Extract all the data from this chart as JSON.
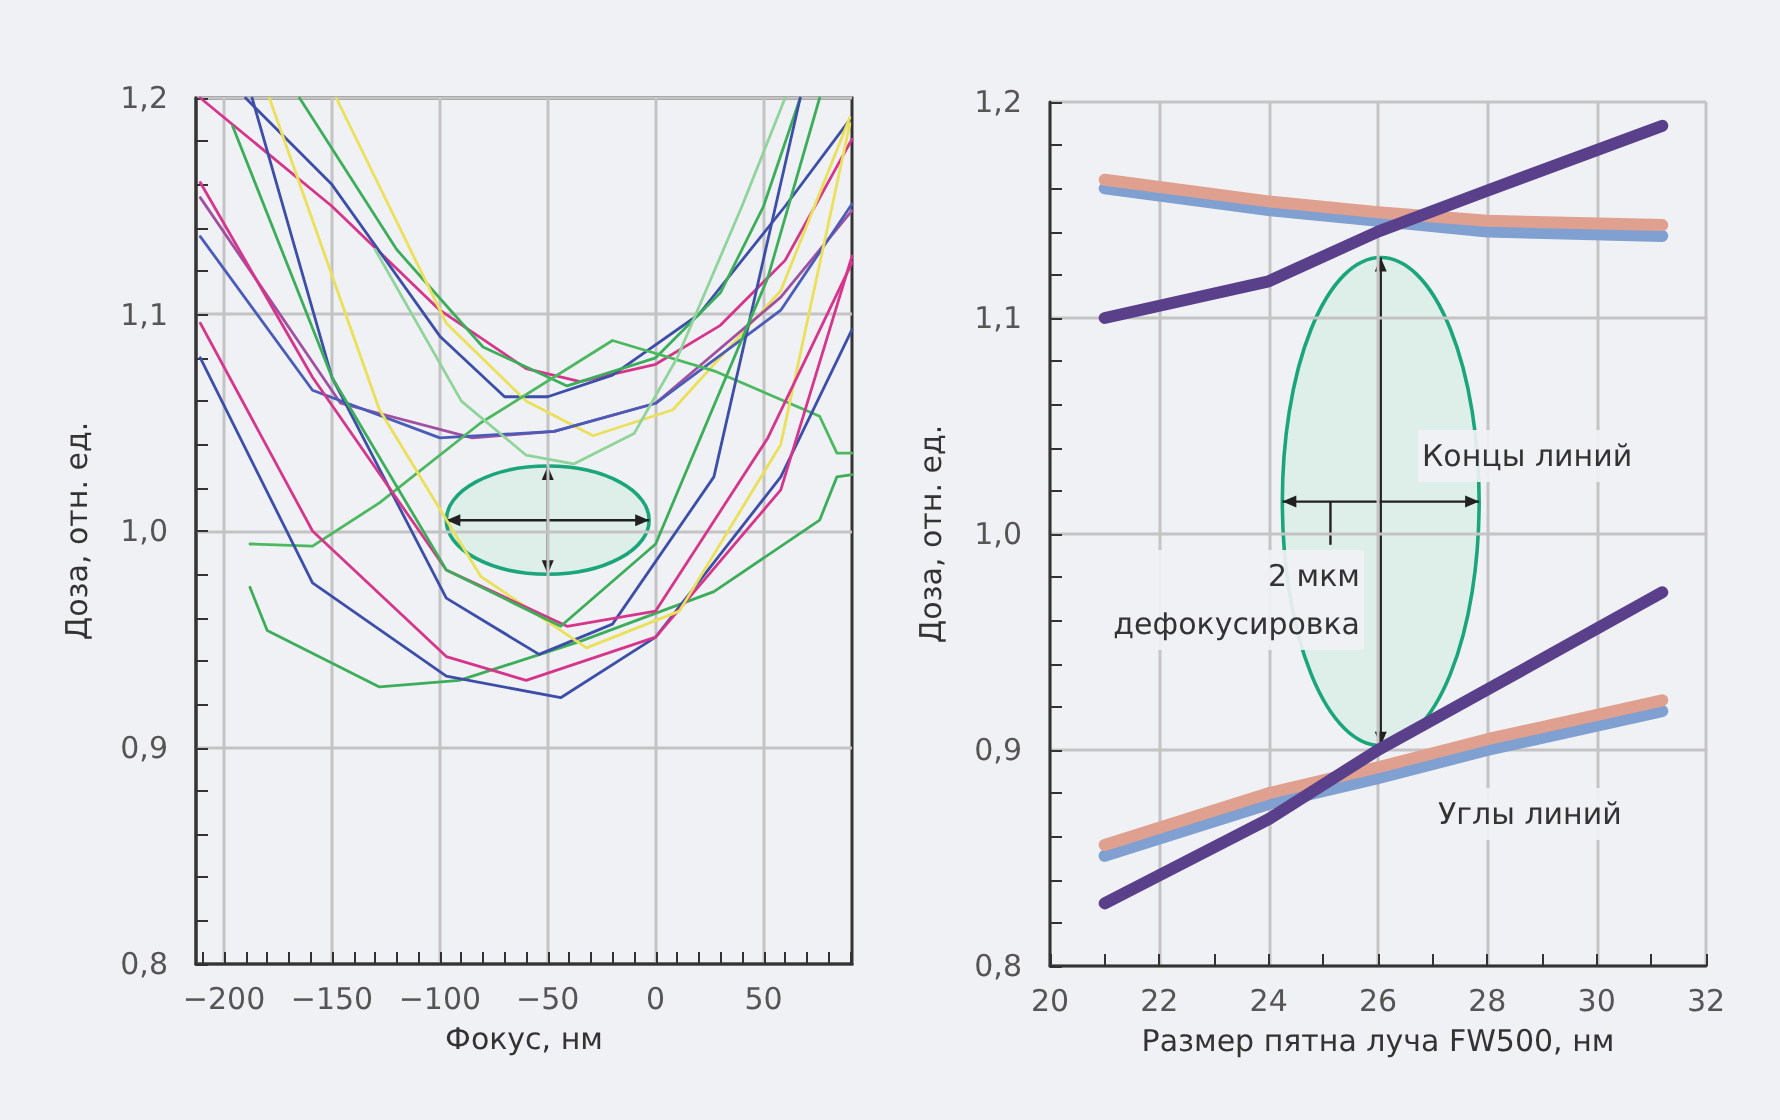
{
  "chart_data": [
    {
      "type": "line",
      "xlabel": "Фокус, нм",
      "ylabel": "Доза, отн. ед.",
      "xlim": [
        -213,
        91
      ],
      "ylim": [
        0.8,
        1.2
      ],
      "grid": true,
      "marker": "none",
      "line_style": "solid",
      "xticks": [
        {
          "value": -210,
          "label": null
        },
        {
          "value": -200,
          "label": "−200"
        },
        {
          "value": -190,
          "label": null
        },
        {
          "value": -180,
          "label": null
        },
        {
          "value": -170,
          "label": null
        },
        {
          "value": -160,
          "label": null
        },
        {
          "value": -150,
          "label": "−150"
        },
        {
          "value": -140,
          "label": null
        },
        {
          "value": -130,
          "label": null
        },
        {
          "value": -120,
          "label": null
        },
        {
          "value": -110,
          "label": null
        },
        {
          "value": -100,
          "label": "−100"
        },
        {
          "value": -90,
          "label": null
        },
        {
          "value": -80,
          "label": null
        },
        {
          "value": -70,
          "label": null
        },
        {
          "value": -60,
          "label": null
        },
        {
          "value": -50,
          "label": "−50"
        },
        {
          "value": -40,
          "label": null
        },
        {
          "value": -30,
          "label": null
        },
        {
          "value": -20,
          "label": null
        },
        {
          "value": -10,
          "label": null
        },
        0,
        {
          "value": 10,
          "label": null
        },
        {
          "value": 20,
          "label": null
        },
        {
          "value": 30,
          "label": null
        },
        {
          "value": 40,
          "label": null
        },
        50,
        {
          "value": 60,
          "label": null
        },
        {
          "value": 70,
          "label": null
        },
        {
          "value": 80,
          "label": null
        },
        {
          "value": 90,
          "label": null
        }
      ],
      "yticks": [
        {
          "value": 0.8,
          "label": "0,8"
        },
        {
          "value": 0.82,
          "label": null
        },
        {
          "value": 0.84,
          "label": null
        },
        {
          "value": 0.86,
          "label": null
        },
        {
          "value": 0.88,
          "label": null
        },
        {
          "value": 0.9,
          "label": "0,9"
        },
        {
          "value": 0.92,
          "label": null
        },
        {
          "value": 0.94,
          "label": null
        },
        {
          "value": 0.96,
          "label": null
        },
        {
          "value": 0.98,
          "label": null
        },
        {
          "value": 1.0,
          "label": "1,0"
        },
        {
          "value": 1.02,
          "label": null
        },
        {
          "value": 1.04,
          "label": null
        },
        {
          "value": 1.06,
          "label": null
        },
        {
          "value": 1.08,
          "label": null
        },
        {
          "value": 1.1,
          "label": "1,1"
        },
        {
          "value": 1.12,
          "label": null
        },
        {
          "value": 1.14,
          "label": null
        },
        {
          "value": 1.16,
          "label": null
        },
        {
          "value": 1.18,
          "label": null
        },
        {
          "value": 1.2,
          "label": "1,2"
        }
      ],
      "series": [
        {
          "color": "#d6358c",
          "x": [
            -211,
            -150,
            -100,
            -60,
            -35,
            0,
            30,
            60,
            91
          ],
          "values": [
            1.2,
            1.15,
            1.102,
            1.075,
            1.069,
            1.077,
            1.095,
            1.125,
            1.181
          ]
        },
        {
          "color": "#3c4ea8",
          "x": [
            -190,
            -150,
            -100,
            -70,
            -50,
            -20,
            20,
            60,
            90
          ],
          "values": [
            1.2,
            1.16,
            1.09,
            1.062,
            1.062,
            1.072,
            1.1,
            1.15,
            1.19
          ]
        },
        {
          "color": "#3cae5a",
          "x": [
            -165,
            -120,
            -80,
            -41,
            0,
            30,
            50,
            67
          ],
          "values": [
            1.2,
            1.13,
            1.085,
            1.067,
            1.08,
            1.11,
            1.15,
            1.2
          ]
        },
        {
          "color": "#ebe05a",
          "x": [
            -148,
            -97,
            -60,
            -29,
            8,
            58,
            90
          ],
          "values": [
            1.2,
            1.096,
            1.06,
            1.044,
            1.056,
            1.111,
            1.191
          ]
        },
        {
          "color": "#a050a0",
          "x": [
            -211,
            -146,
            -85,
            -47,
            0,
            58,
            91
          ],
          "values": [
            1.154,
            1.059,
            1.043,
            1.046,
            1.059,
            1.108,
            1.148
          ]
        },
        {
          "color": "#4a5cb8",
          "x": [
            -211,
            -159,
            -100,
            -47,
            0,
            58,
            91
          ],
          "values": [
            1.136,
            1.065,
            1.043,
            1.046,
            1.059,
            1.102,
            1.151
          ]
        },
        {
          "color": "#4cb860",
          "x": [
            -188,
            -159,
            -128,
            -81,
            -20,
            27,
            76,
            84,
            91
          ],
          "values": [
            0.994,
            0.993,
            1.013,
            1.05,
            1.088,
            1.074,
            1.053,
            1.036,
            1.036
          ]
        },
        {
          "color": "#8fd49a",
          "x": [
            -130,
            -90,
            -60,
            -38,
            -10,
            10,
            40,
            60
          ],
          "values": [
            1.13,
            1.06,
            1.035,
            1.031,
            1.045,
            1.08,
            1.15,
            1.2
          ]
        },
        {
          "color": "#3cae5a",
          "x": [
            -188,
            -180,
            -128,
            -91,
            -35,
            27,
            76,
            84,
            91
          ],
          "values": [
            0.974,
            0.954,
            0.928,
            0.931,
            0.949,
            0.972,
            1.005,
            1.025,
            1.026
          ]
        },
        {
          "color": "#3c4ea8",
          "x": [
            -211,
            -159,
            -97,
            -44,
            0,
            58,
            91
          ],
          "values": [
            1.08,
            0.976,
            0.933,
            0.923,
            0.951,
            1.025,
            1.093
          ]
        },
        {
          "color": "#d6358c",
          "x": [
            -211,
            -159,
            -97,
            -60,
            0,
            58,
            91
          ],
          "values": [
            1.096,
            1.0,
            0.942,
            0.931,
            0.951,
            1.019,
            1.127
          ]
        },
        {
          "color": "#3c4ea8",
          "x": [
            -187,
            -150,
            -97,
            -54,
            -20,
            27,
            67
          ],
          "values": [
            1.2,
            1.071,
            0.969,
            0.943,
            0.957,
            1.025,
            1.2
          ]
        },
        {
          "color": "#ebe05a",
          "x": [
            -179,
            -128,
            -81,
            -32,
            11,
            58,
            90
          ],
          "values": [
            1.2,
            1.056,
            0.979,
            0.946,
            0.963,
            1.04,
            1.188
          ]
        },
        {
          "color": "#d6358c",
          "x": [
            -211,
            -159,
            -97,
            -41,
            0,
            52,
            91
          ],
          "values": [
            1.161,
            1.071,
            0.982,
            0.956,
            0.963,
            1.043,
            1.124
          ]
        },
        {
          "color": "#3cae5a",
          "x": [
            -196,
            -150,
            -97,
            -44,
            0,
            52,
            76
          ],
          "values": [
            1.187,
            1.071,
            0.982,
            0.956,
            0.994,
            1.117,
            1.2
          ]
        }
      ]
    },
    {
      "type": "line",
      "xlabel": "Размер пятна луча FW500, нм",
      "ylabel": "Доза, отн. ед.",
      "xlim": [
        20,
        32
      ],
      "ylim": [
        0.8,
        1.2
      ],
      "grid": true,
      "marker": "none",
      "line_style": "solid",
      "xticks": [
        20,
        {
          "value": 21,
          "label": null
        },
        22,
        {
          "value": 23,
          "label": null
        },
        24,
        {
          "value": 25,
          "label": null
        },
        26,
        {
          "value": 27,
          "label": null
        },
        28,
        {
          "value": 29,
          "label": null
        },
        30,
        {
          "value": 31,
          "label": null
        },
        32
      ],
      "yticks": [
        {
          "value": 0.8,
          "label": "0,8"
        },
        {
          "value": 0.82,
          "label": null
        },
        {
          "value": 0.84,
          "label": null
        },
        {
          "value": 0.86,
          "label": null
        },
        {
          "value": 0.88,
          "label": null
        },
        {
          "value": 0.9,
          "label": "0,9"
        },
        {
          "value": 0.92,
          "label": null
        },
        {
          "value": 0.94,
          "label": null
        },
        {
          "value": 0.96,
          "label": null
        },
        {
          "value": 0.98,
          "label": null
        },
        {
          "value": 1.0,
          "label": "1,0"
        },
        {
          "value": 1.02,
          "label": null
        },
        {
          "value": 1.04,
          "label": null
        },
        {
          "value": 1.06,
          "label": null
        },
        {
          "value": 1.08,
          "label": null
        },
        {
          "value": 1.1,
          "label": "1,1"
        },
        {
          "value": 1.12,
          "label": null
        },
        {
          "value": 1.14,
          "label": null
        },
        {
          "value": 1.16,
          "label": null
        },
        {
          "value": 1.18,
          "label": null
        },
        {
          "value": 1.2,
          "label": "1,2"
        }
      ],
      "x": [
        21,
        24,
        26,
        28,
        31.2
      ],
      "series": [
        {
          "color": "#7fa0d0",
          "values": [
            1.16,
            1.15,
            1.145,
            1.14,
            1.138
          ]
        },
        {
          "color": "#e0a090",
          "values": [
            1.164,
            1.154,
            1.149,
            1.145,
            1.143
          ]
        },
        {
          "color": "#5a3f8a",
          "values": [
            1.1,
            1.117,
            1.14,
            1.159,
            1.189
          ]
        },
        {
          "color": "#7fa0d0",
          "values": [
            0.851,
            0.875,
            0.887,
            0.9,
            0.918
          ]
        },
        {
          "color": "#e0a090",
          "values": [
            0.856,
            0.88,
            0.892,
            0.905,
            0.923
          ]
        },
        {
          "color": "#5a3f8a",
          "values": [
            0.829,
            0.868,
            0.9,
            0.928,
            0.973
          ]
        }
      ],
      "annotations": [
        "Концы линий",
        "2 мкм\nдефокусировка",
        "Углы линий"
      ]
    }
  ]
}
